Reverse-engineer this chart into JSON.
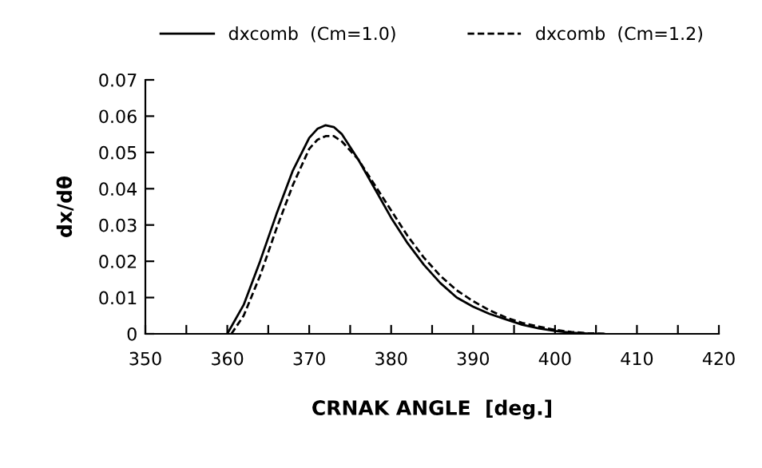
{
  "chart_data": {
    "type": "line",
    "xlabel": "CRNAK ANGLE  [deg.]",
    "ylabel": "dx/dθ",
    "xlim": [
      350,
      420
    ],
    "ylim": [
      0,
      0.07
    ],
    "xticks": [
      350,
      {
        "value": 355,
        "label": null
      },
      360,
      {
        "value": 365,
        "label": null
      },
      370,
      {
        "value": 375,
        "label": null
      },
      380,
      {
        "value": 385,
        "label": null
      },
      390,
      {
        "value": 395,
        "label": null
      },
      400,
      {
        "value": 405,
        "label": null
      },
      410,
      {
        "value": 415,
        "label": null
      },
      420
    ],
    "yticks": [
      0,
      0.01,
      0.02,
      0.03,
      0.04,
      0.05,
      0.06,
      0.07
    ],
    "grid": false,
    "legend": "top",
    "series": [
      {
        "name": "dxcomb  (Cm=1.0)",
        "color": "#000000",
        "line_style": "solid",
        "x": [
          360,
          362,
          364,
          366,
          368,
          370,
          371,
          372,
          373,
          374,
          376,
          378,
          380,
          382,
          384,
          386,
          388,
          390,
          392,
          394,
          396,
          398,
          400,
          402,
          404,
          406
        ],
        "values": [
          0,
          0.008,
          0.02,
          0.033,
          0.045,
          0.054,
          0.0565,
          0.0575,
          0.057,
          0.055,
          0.048,
          0.04,
          0.032,
          0.025,
          0.019,
          0.014,
          0.01,
          0.0075,
          0.0055,
          0.004,
          0.0025,
          0.0015,
          0.0008,
          0.0003,
          0.0001,
          0
        ]
      },
      {
        "name": "dxcomb  (Cm=1.2)",
        "color": "#000000",
        "line_style": "dashed",
        "x": [
          360.5,
          362,
          364,
          366,
          368,
          370,
          371,
          372,
          373,
          374,
          376,
          378,
          380,
          382,
          384,
          386,
          388,
          390,
          392,
          394,
          396,
          398,
          400,
          402,
          404,
          406
        ],
        "values": [
          0,
          0.005,
          0.016,
          0.029,
          0.041,
          0.051,
          0.0535,
          0.0545,
          0.0545,
          0.053,
          0.048,
          0.041,
          0.034,
          0.027,
          0.021,
          0.016,
          0.012,
          0.009,
          0.0065,
          0.0045,
          0.003,
          0.002,
          0.0011,
          0.0005,
          0.0002,
          0
        ]
      }
    ]
  }
}
